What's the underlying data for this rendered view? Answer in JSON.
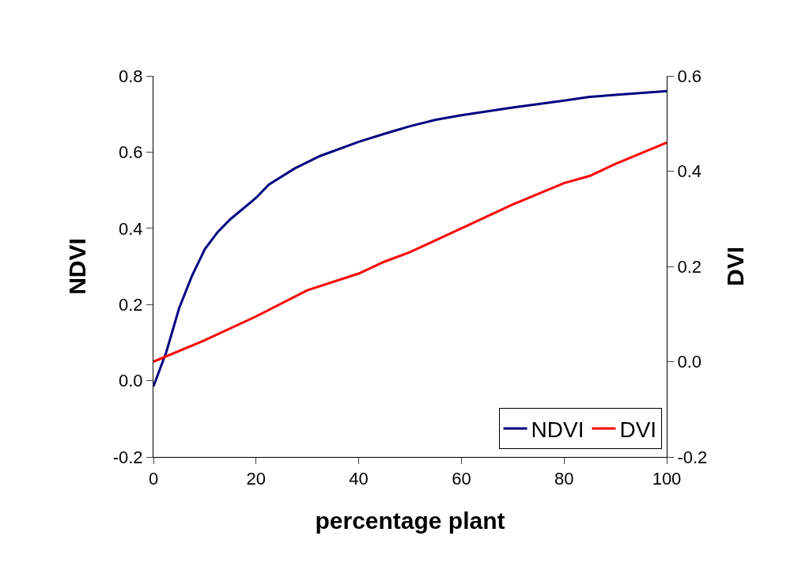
{
  "chart_data": {
    "type": "line",
    "xlabel": "percentage plant",
    "ylabel": "NDVI",
    "y2label": "DVI",
    "series": [
      {
        "name": "NDVI",
        "color": "#000080",
        "x": [
          0,
          2.5,
          5,
          7.5,
          10,
          12.5,
          15,
          20,
          22.5,
          27.5,
          32.5,
          40,
          45,
          50,
          55,
          60,
          70,
          80,
          85,
          90,
          100
        ],
        "values": [
          -0.015,
          0.075,
          0.19,
          0.275,
          0.345,
          0.39,
          0.424,
          0.48,
          0.515,
          0.557,
          0.59,
          0.627,
          0.648,
          0.668,
          0.685,
          0.697,
          0.717,
          0.735,
          0.745,
          0.75,
          0.76
        ]
      },
      {
        "name": "DVI",
        "color": "#ff0000",
        "axis": "y2",
        "x": [
          0,
          10,
          20,
          30,
          40,
          45,
          50,
          60,
          70,
          80,
          85,
          90,
          100
        ],
        "values": [
          0.0,
          0.045,
          0.095,
          0.15,
          0.185,
          0.21,
          0.23,
          0.28,
          0.33,
          0.375,
          0.39,
          0.415,
          0.46
        ]
      }
    ],
    "xlim": [
      0,
      100
    ],
    "xticks": [
      0,
      20,
      40,
      60,
      80,
      100
    ],
    "ylim": [
      -0.2,
      0.8
    ],
    "yticks": [
      {
        "value": -0.2,
        "label": "-0.2"
      },
      {
        "value": 0,
        "label": "0.0"
      },
      {
        "value": 0.2,
        "label": "0.2"
      },
      {
        "value": 0.4,
        "label": "0.4"
      },
      {
        "value": 0.6,
        "label": "0.6"
      },
      {
        "value": 0.8,
        "label": "0.8"
      }
    ],
    "y2lim": [
      -0.2,
      0.6
    ],
    "y2ticks": [
      {
        "value": -0.2,
        "label": "-0.2"
      },
      {
        "value": 0,
        "label": "0.0"
      },
      {
        "value": 0.2,
        "label": "0.2"
      },
      {
        "value": 0.4,
        "label": "0.4"
      },
      {
        "value": 0.6,
        "label": "0.6"
      }
    ],
    "grid": false,
    "legend": "bottom right",
    "marker": "none",
    "line_style": "solid"
  }
}
